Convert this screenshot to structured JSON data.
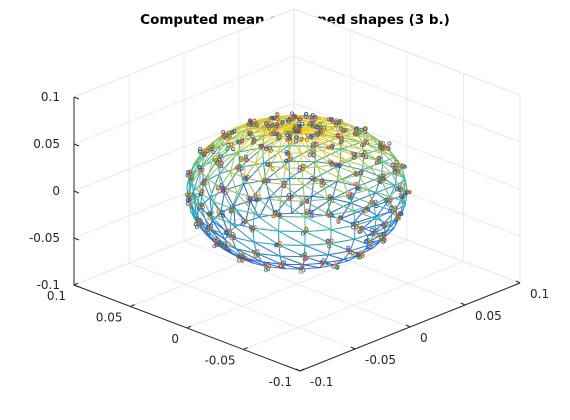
{
  "chart_data": {
    "type": "scatter",
    "title": "Computed mean of aligned shapes (3 b.)",
    "xlabel": "",
    "ylabel": "",
    "zlabel": "",
    "xlim": [
      -0.1,
      0.1
    ],
    "ylim": [
      -0.1,
      0.1
    ],
    "zlim": [
      -0.1,
      0.1
    ],
    "xticks": [
      "-0.1",
      "-0.05",
      "0",
      "0.05",
      "0.1"
    ],
    "yticks": [
      "-0.1",
      "-0.05",
      "0",
      "0.05",
      "0.1"
    ],
    "zticks": [
      "-0.1",
      "-0.05",
      "0",
      "0.05",
      "0.1"
    ],
    "grid": true,
    "view": "3d",
    "shape": {
      "kind": "triangulated-surface-with-landmarks",
      "center": [
        0.0,
        0.0,
        0.0
      ],
      "radii": [
        0.07,
        0.07,
        0.065
      ],
      "colormap_low": "#2b5cd6",
      "colormap_mid": "#30b8b0",
      "colormap_high": "#f0d020"
    },
    "marker_series_colors": [
      "#e04a2a",
      "#7a3aa8",
      "#2f8f3a",
      "#1f5fc0",
      "#d08a1a"
    ]
  }
}
